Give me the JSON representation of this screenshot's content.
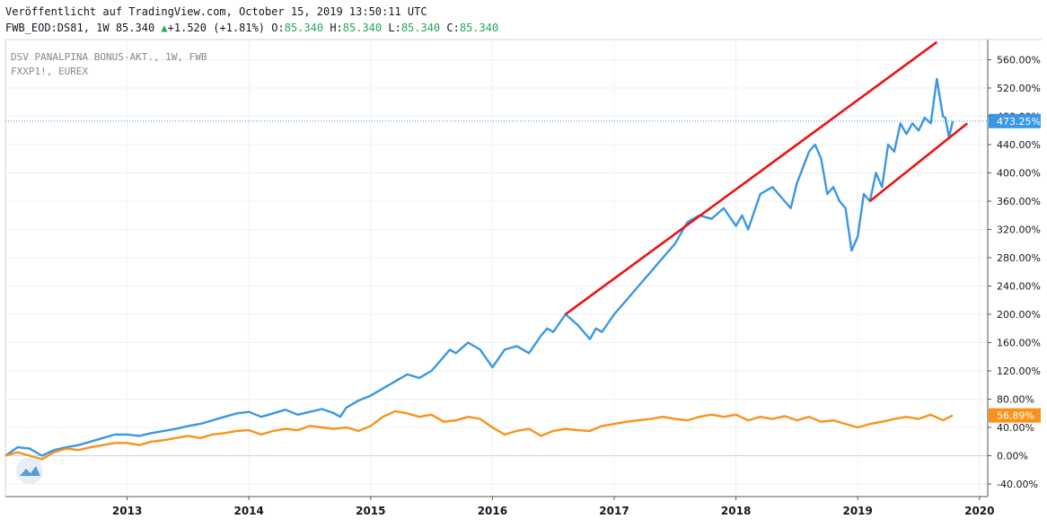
{
  "header": {
    "published": "Veröffentlicht auf TradingView.com, October 15, 2019 13:50:11 UTC",
    "symbol": "FWB_EOD:DS81, 1W",
    "price": "85.340",
    "arrow": "▲",
    "change": "+1.520 (+1.81%)",
    "o_label": "O:",
    "o_value": "85.340",
    "h_label": "H:",
    "h_value": "85.340",
    "l_label": "L:",
    "l_value": "85.340",
    "c_label": "C:",
    "c_value": "85.340"
  },
  "legend": {
    "line1": "DSV PANALPINA BONUS-AKT., 1W, FWB",
    "line2": "FXXP1!, EUREX"
  },
  "colors": {
    "dsv": "#3a97e4",
    "fxxp": "#f7931a",
    "trend": "#ee1111",
    "grid": "#eef0f3",
    "axis": "#555555",
    "dsv_label_bg": "#3a97e4",
    "fxxp_label_bg": "#f7931a"
  },
  "chart_data": {
    "type": "line",
    "title": "",
    "xlabel": "",
    "ylabel": "",
    "y_unit": "%",
    "ylim": [
      -50,
      590
    ],
    "x_ticks": [
      "2013",
      "2014",
      "2015",
      "2016",
      "2017",
      "2018",
      "2019",
      "2020"
    ],
    "x_tick_values": [
      2013,
      2014,
      2015,
      2016,
      2017,
      2018,
      2019,
      2020
    ],
    "y_ticks": [
      "560.00%",
      "520.00%",
      "480.00%",
      "440.00%",
      "400.00%",
      "360.00%",
      "320.00%",
      "280.00%",
      "240.00%",
      "200.00%",
      "160.00%",
      "120.00%",
      "80.00%",
      "40.00%",
      "0.00%",
      "-40.00%"
    ],
    "y_tick_values": [
      560,
      520,
      480,
      440,
      400,
      360,
      320,
      280,
      240,
      200,
      160,
      120,
      80,
      40,
      0,
      -40
    ],
    "grid": true,
    "series": [
      {
        "name": "DSV PANALPINA BONUS-AKT., 1W, FWB",
        "last_label": "473.25%",
        "x": [
          2012.0,
          2012.1,
          2012.2,
          2012.3,
          2012.4,
          2012.5,
          2012.6,
          2012.7,
          2012.8,
          2012.9,
          2013.0,
          2013.1,
          2013.2,
          2013.3,
          2013.4,
          2013.5,
          2013.6,
          2013.7,
          2013.8,
          2013.9,
          2014.0,
          2014.1,
          2014.2,
          2014.3,
          2014.4,
          2014.5,
          2014.6,
          2014.7,
          2014.75,
          2014.8,
          2014.9,
          2015.0,
          2015.1,
          2015.2,
          2015.3,
          2015.4,
          2015.5,
          2015.6,
          2015.65,
          2015.7,
          2015.8,
          2015.9,
          2016.0,
          2016.1,
          2016.2,
          2016.3,
          2016.4,
          2016.45,
          2016.5,
          2016.6,
          2016.7,
          2016.8,
          2016.85,
          2016.9,
          2017.0,
          2017.1,
          2017.2,
          2017.3,
          2017.4,
          2017.5,
          2017.6,
          2017.7,
          2017.8,
          2017.9,
          2018.0,
          2018.05,
          2018.1,
          2018.15,
          2018.2,
          2018.3,
          2018.4,
          2018.45,
          2018.5,
          2018.6,
          2018.65,
          2018.7,
          2018.75,
          2018.8,
          2018.85,
          2018.9,
          2018.95,
          2019.0,
          2019.05,
          2019.1,
          2019.15,
          2019.2,
          2019.25,
          2019.3,
          2019.35,
          2019.4,
          2019.45,
          2019.5,
          2019.55,
          2019.6,
          2019.65,
          2019.7,
          2019.72,
          2019.75,
          2019.78
        ],
        "y": [
          0,
          12,
          10,
          0,
          8,
          12,
          15,
          20,
          25,
          30,
          30,
          28,
          32,
          35,
          38,
          42,
          45,
          50,
          55,
          60,
          62,
          55,
          60,
          65,
          58,
          62,
          66,
          60,
          55,
          68,
          78,
          85,
          95,
          105,
          115,
          110,
          120,
          140,
          150,
          145,
          160,
          150,
          125,
          150,
          155,
          145,
          170,
          180,
          175,
          200,
          185,
          165,
          180,
          175,
          200,
          220,
          240,
          260,
          280,
          300,
          330,
          340,
          335,
          350,
          325,
          340,
          320,
          345,
          370,
          380,
          360,
          350,
          385,
          430,
          440,
          420,
          370,
          380,
          360,
          350,
          290,
          310,
          370,
          360,
          400,
          380,
          440,
          430,
          470,
          455,
          470,
          460,
          478,
          470,
          533,
          480,
          478,
          450,
          473
        ]
      },
      {
        "name": "FXXP1!, EUREX",
        "last_label": "56.89%",
        "x": [
          2012.0,
          2012.1,
          2012.2,
          2012.3,
          2012.4,
          2012.5,
          2012.6,
          2012.7,
          2012.8,
          2012.9,
          2013.0,
          2013.1,
          2013.2,
          2013.3,
          2013.4,
          2013.5,
          2013.6,
          2013.7,
          2013.8,
          2013.9,
          2014.0,
          2014.1,
          2014.2,
          2014.3,
          2014.4,
          2014.5,
          2014.6,
          2014.7,
          2014.8,
          2014.9,
          2015.0,
          2015.1,
          2015.2,
          2015.3,
          2015.4,
          2015.5,
          2015.6,
          2015.7,
          2015.8,
          2015.9,
          2016.0,
          2016.1,
          2016.2,
          2016.3,
          2016.4,
          2016.5,
          2016.6,
          2016.7,
          2016.8,
          2016.9,
          2017.0,
          2017.1,
          2017.2,
          2017.3,
          2017.4,
          2017.5,
          2017.6,
          2017.7,
          2017.8,
          2017.9,
          2018.0,
          2018.1,
          2018.2,
          2018.3,
          2018.4,
          2018.5,
          2018.6,
          2018.7,
          2018.8,
          2018.9,
          2019.0,
          2019.1,
          2019.2,
          2019.3,
          2019.4,
          2019.5,
          2019.6,
          2019.7,
          2019.78
        ],
        "y": [
          0,
          5,
          0,
          -5,
          5,
          10,
          8,
          12,
          15,
          18,
          18,
          15,
          20,
          22,
          25,
          28,
          25,
          30,
          32,
          35,
          36,
          30,
          35,
          38,
          36,
          42,
          40,
          38,
          40,
          35,
          42,
          55,
          63,
          60,
          55,
          58,
          48,
          50,
          55,
          52,
          40,
          30,
          35,
          38,
          28,
          35,
          38,
          36,
          35,
          42,
          45,
          48,
          50,
          52,
          55,
          52,
          50,
          55,
          58,
          55,
          58,
          50,
          55,
          52,
          56,
          50,
          55,
          48,
          50,
          45,
          40,
          45,
          48,
          52,
          55,
          52,
          58,
          50,
          57
        ]
      }
    ],
    "trend_lines": [
      {
        "x": [
          2016.6,
          2019.65
        ],
        "y": [
          200,
          585
        ]
      },
      {
        "x": [
          2019.1,
          2019.9
        ],
        "y": [
          360,
          470
        ]
      }
    ],
    "current_line_value": 473.25
  }
}
